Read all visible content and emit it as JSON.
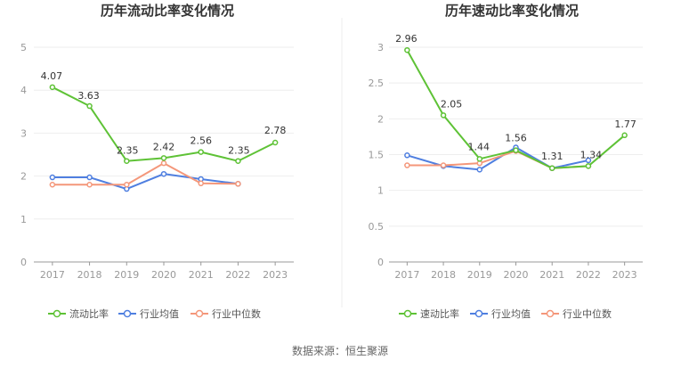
{
  "footer": {
    "source": "数据来源：恒生聚源"
  },
  "chart_data": [
    {
      "type": "line",
      "title": "历年流动比率变化情况",
      "categories": [
        "2017",
        "2018",
        "2019",
        "2020",
        "2021",
        "2022",
        "2023"
      ],
      "ylim": [
        0,
        5
      ],
      "yticks": [
        0,
        1,
        2,
        3,
        4,
        5
      ],
      "ytick_labels": [
        "0",
        "1",
        "2",
        "3",
        "4",
        "5"
      ],
      "grid": true,
      "legend_position": "bottom",
      "series": [
        {
          "name": "流动比率",
          "color": "#5ec236",
          "values": [
            4.07,
            3.63,
            2.35,
            2.42,
            2.56,
            2.35,
            2.78
          ],
          "labels": [
            "4.07",
            "3.63",
            "2.35",
            "2.42",
            "2.56",
            "2.35",
            "2.78"
          ]
        },
        {
          "name": "行业均值",
          "color": "#4f7fe0",
          "values": [
            1.97,
            1.97,
            1.7,
            2.05,
            1.93,
            1.82,
            null
          ]
        },
        {
          "name": "行业中位数",
          "color": "#f4977a",
          "values": [
            1.8,
            1.8,
            1.8,
            2.3,
            1.83,
            1.82,
            null
          ]
        }
      ]
    },
    {
      "type": "line",
      "title": "历年速动比率变化情况",
      "categories": [
        "2017",
        "2018",
        "2019",
        "2020",
        "2021",
        "2022",
        "2023"
      ],
      "ylim": [
        0,
        3
      ],
      "yticks": [
        0,
        0.5,
        1,
        1.5,
        2,
        2.5,
        3
      ],
      "ytick_labels": [
        "0",
        "0.5",
        "1",
        "1.5",
        "2",
        "2.5",
        "3"
      ],
      "grid": true,
      "legend_position": "bottom",
      "series": [
        {
          "name": "速动比率",
          "color": "#5ec236",
          "values": [
            2.96,
            2.05,
            1.44,
            1.56,
            1.31,
            1.34,
            1.77
          ],
          "labels": [
            "2.96",
            "2.05",
            "1.44",
            "1.56",
            "1.31",
            "1.34",
            "1.77"
          ]
        },
        {
          "name": "行业均值",
          "color": "#4f7fe0",
          "values": [
            1.49,
            1.34,
            1.29,
            1.6,
            1.31,
            1.42,
            null
          ]
        },
        {
          "name": "行业中位数",
          "color": "#f4977a",
          "values": [
            1.35,
            1.35,
            1.38,
            1.55,
            1.31,
            1.34,
            null
          ]
        }
      ]
    }
  ]
}
